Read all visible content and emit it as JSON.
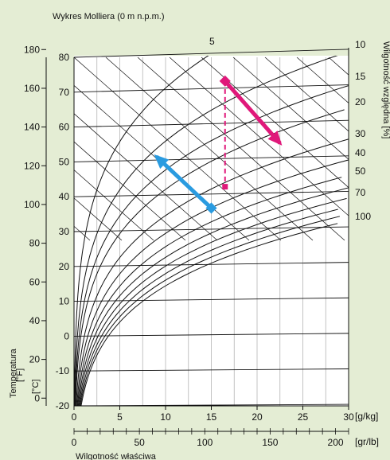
{
  "colors": {
    "background": "#e4edd4",
    "plot_area": "#ffffff",
    "grid": "#b4b4b4",
    "lines": "#111111",
    "magenta": "#e0187a",
    "blue": "#2a9be0"
  },
  "chart_data": {
    "type": "line",
    "title": "Wykres Molliera (0 m n.p.m.)",
    "x_axis": {
      "label": "Wilgotność właściwa",
      "unit_gkg": "[g/kg]",
      "unit_grlb": "[gr/lb]",
      "gkg_range": [
        0,
        30
      ],
      "gkg_ticks": [
        "0",
        "5",
        "10",
        "15",
        "20",
        "25",
        "30"
      ],
      "grlb_range": [
        0,
        210
      ],
      "grlb_ticks": [
        "0",
        "50",
        "100",
        "150",
        "200"
      ]
    },
    "y_axis": {
      "label": "Temperatura",
      "unit_c": "[°C]",
      "unit_f": "[°F]",
      "celsius_range": [
        -20,
        80
      ],
      "celsius_ticks": [
        "80",
        "70",
        "60",
        "50",
        "40",
        "30",
        "20",
        "10",
        "0",
        "-10",
        "-20"
      ],
      "fahrenheit_ticks": [
        "180",
        "160",
        "140",
        "120",
        "100",
        "80",
        "60",
        "40",
        "20",
        "0"
      ]
    },
    "rh_axis": {
      "label": "Wilgotność względna [%]",
      "labels": [
        "10",
        "15",
        "20",
        "30",
        "40",
        "50",
        "70",
        "100"
      ]
    },
    "top_label": "5",
    "relative_humidity_curves_percent": [
      5,
      10,
      15,
      20,
      30,
      40,
      50,
      60,
      70,
      80,
      90,
      100
    ],
    "annotations": [
      {
        "name": "magenta-arrow",
        "from": {
          "x_gkg": 16.5,
          "t_c": 72
        },
        "to": {
          "x_gkg": 22.5,
          "t_c": 54
        }
      },
      {
        "name": "magenta-dashed",
        "from": {
          "x_gkg": 16.5,
          "t_c": 72
        },
        "to": {
          "x_gkg": 16.5,
          "t_c": 42
        }
      },
      {
        "name": "blue-arrow",
        "from": {
          "x_gkg": 15,
          "t_c": 36
        },
        "to": {
          "x_gkg": 9,
          "t_c": 51
        }
      }
    ],
    "grid": true
  }
}
